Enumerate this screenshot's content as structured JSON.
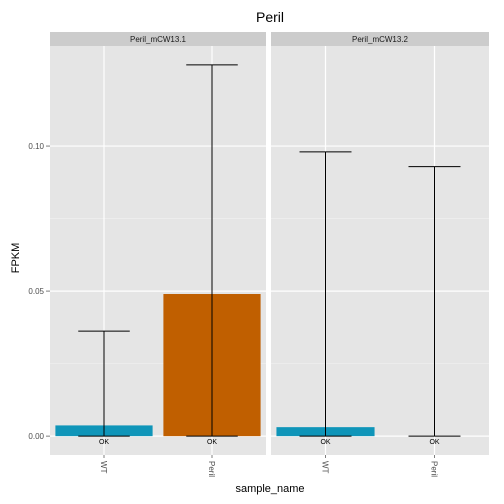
{
  "chart_data": {
    "type": "bar",
    "title": "Peril",
    "xlabel": "sample_name",
    "ylabel": "FPKM",
    "ylim": [
      -0.0065,
      0.1345
    ],
    "yticks": [
      0.0,
      0.05,
      0.1
    ],
    "ytick_labels": [
      "0.00",
      "0.05",
      "0.10"
    ],
    "grid": true,
    "colors": {
      "WT": "#0f95b9",
      "Peril": "#c05f00",
      "panel_bg": "#e5e5e5",
      "strip_bg": "#cccccc"
    },
    "panels": [
      {
        "name": "Peril_mCW13.1",
        "categories": [
          "WT",
          "Peril"
        ],
        "values": [
          0.0037,
          0.049
        ],
        "error_high": [
          0.0362,
          0.128
        ],
        "error_low": [
          0.0,
          0.0
        ],
        "status": [
          "OK",
          "OK"
        ]
      },
      {
        "name": "Peril_mCW13.2",
        "categories": [
          "WT",
          "Peril"
        ],
        "values": [
          0.0031,
          0.0
        ],
        "error_high": [
          0.098,
          0.0929
        ],
        "error_low": [
          0.0,
          0.0
        ],
        "status": [
          "OK",
          "OK"
        ]
      }
    ]
  }
}
